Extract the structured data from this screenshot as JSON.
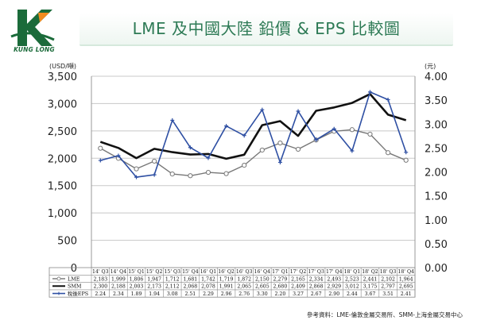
{
  "header": {
    "brand": "KUNG LONG",
    "title": "LME 及中國大陸 鉛價 & EPS 比較圖"
  },
  "footer": {
    "source": "參考資料：LME-倫敦金屬交易所、SMM-上海金屬交易中心"
  },
  "colors": {
    "lme": "#777777",
    "smm": "#111111",
    "eps": "#2e4fa3",
    "title": "#2d7a55",
    "logo_green": "#1b6b3a",
    "logo_orange": "#f28b1f"
  },
  "chart_data": {
    "type": "line",
    "categories": [
      "14' Q3",
      "14' Q4",
      "15' Q1",
      "15' Q2",
      "15' Q3",
      "15' Q4",
      "16' Q1",
      "16' Q2",
      "16' Q3",
      "16' Q4",
      "17' Q1",
      "17' Q2",
      "17' Q3",
      "17' Q4",
      "18' Q1",
      "18' Q2",
      "18' Q3",
      "18' Q4"
    ],
    "ylabel_left": "(USD/噸)",
    "ylabel_right": "(元)",
    "ylim_left": [
      0,
      3500
    ],
    "yticks_left": [
      "0",
      "500",
      "1,000",
      "1,500",
      "2,000",
      "2,500",
      "3,000",
      "3,500"
    ],
    "ylim_right": [
      0,
      4
    ],
    "yticks_right": [
      "0.00",
      "0.50",
      "1.00",
      "1.50",
      "2.00",
      "2.50",
      "3.00",
      "3.50",
      "4.00"
    ],
    "grid": true,
    "series": [
      {
        "name": "LME",
        "axis": "left",
        "values": [
          2183,
          1999,
          1806,
          1947,
          1712,
          1681,
          1742,
          1719,
          1872,
          2150,
          2279,
          2165,
          2334,
          2493,
          2523,
          2441,
          2102,
          1964
        ],
        "labels": [
          "2,183",
          "1,999",
          "1,806",
          "1,947",
          "1,712",
          "1,681",
          "1,742",
          "1,719",
          "1,872",
          "2,150",
          "2,279",
          "2,165",
          "2,334",
          "2,493",
          "2,523",
          "2,441",
          "2,102",
          "1,964"
        ]
      },
      {
        "name": "SMM",
        "axis": "left",
        "values": [
          2300,
          2188,
          2003,
          2173,
          2112,
          2068,
          2078,
          1991,
          2065,
          2605,
          2680,
          2409,
          2868,
          2929,
          3012,
          3175,
          2797,
          2695
        ],
        "labels": [
          "2,300",
          "2,188",
          "2,003",
          "2,173",
          "2,112",
          "2,068",
          "2,078",
          "1,991",
          "2,065",
          "2,605",
          "2,680",
          "2,409",
          "2,868",
          "2,929",
          "3,012",
          "3,175",
          "2,797",
          "2,695"
        ]
      },
      {
        "name": "稅後EPS",
        "axis": "right",
        "values": [
          2.24,
          2.34,
          1.89,
          1.94,
          3.08,
          2.51,
          2.29,
          2.96,
          2.76,
          3.3,
          2.2,
          3.27,
          2.67,
          2.9,
          2.44,
          3.67,
          3.51,
          2.41
        ],
        "labels": [
          "2.24",
          "2.34",
          "1.89",
          "1.94",
          "3.08",
          "2.51",
          "2.29",
          "2.96",
          "2.76",
          "3.30",
          "2.20",
          "3.27",
          "2.67",
          "2.90",
          "2.44",
          "3.67",
          "3.51",
          "2.41"
        ]
      }
    ]
  }
}
